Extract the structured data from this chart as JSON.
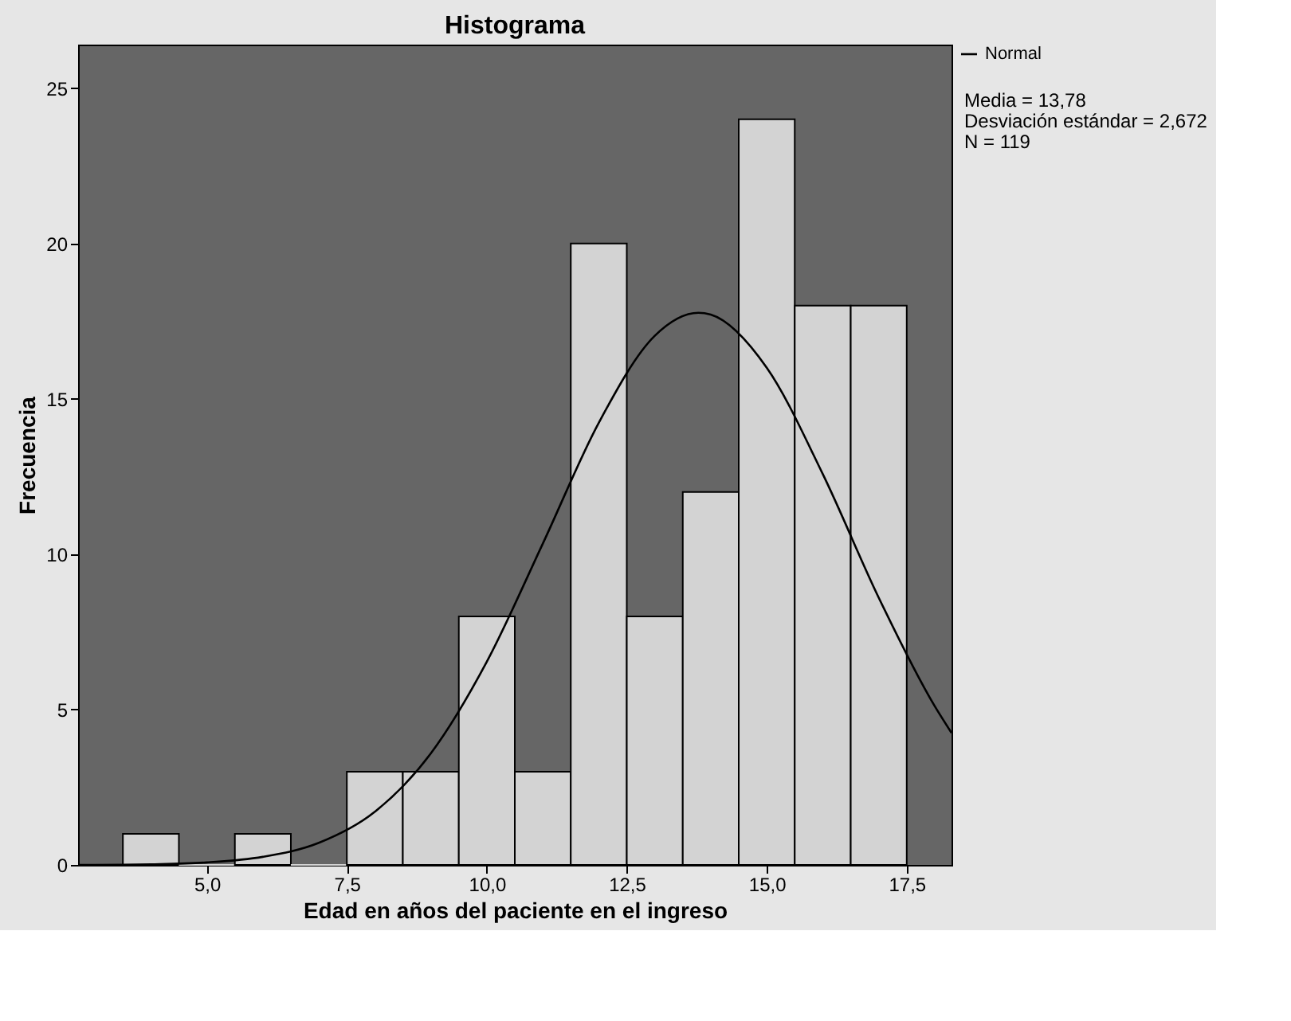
{
  "chart_data": {
    "type": "histogram",
    "title": "Histograma",
    "xlabel": "Edad en años del paciente en el ingreso",
    "ylabel": "Frecuencia",
    "bins": [
      3.5,
      4.5,
      5.5,
      6.5,
      7.5,
      8.5,
      9.5,
      10.5,
      11.5,
      12.5,
      13.5,
      14.5,
      15.5,
      16.5,
      17.5
    ],
    "values": [
      1,
      0,
      1,
      0,
      3,
      3,
      8,
      3,
      20,
      8,
      12,
      24,
      18,
      18
    ],
    "color": "#d3d3d3",
    "series": [
      {
        "name": "Normal",
        "type": "line",
        "color": "#000000",
        "x": [
          2.7,
          3,
          4,
          5,
          6,
          7,
          8,
          9,
          10,
          11,
          12,
          13,
          13.78,
          14,
          15,
          16,
          17,
          18,
          18.3
        ],
        "values": [
          0.0,
          0.0,
          0.02,
          0.08,
          0.26,
          0.71,
          1.71,
          3.59,
          6.54,
          10.34,
          14.23,
          17.03,
          17.77,
          17.71,
          16.0,
          12.58,
          8.6,
          5.11,
          4.25
        ]
      }
    ],
    "xlim": [
      2.7,
      18.3
    ],
    "xticks": [
      {
        "value": 5,
        "label": "5,0"
      },
      {
        "value": 7.5,
        "label": "7,5"
      },
      {
        "value": 10,
        "label": "10,0"
      },
      {
        "value": 12.5,
        "label": "12,5"
      },
      {
        "value": 15,
        "label": "15,0"
      },
      {
        "value": 17.5,
        "label": "17,5"
      }
    ],
    "ylim": [
      0,
      26.4
    ],
    "yticks": [
      0,
      5,
      10,
      15,
      20,
      25
    ],
    "legend": "top right",
    "annotations": [
      "Media = 13,78",
      "Desviación estándar = 2,672",
      "N = 119"
    ]
  }
}
